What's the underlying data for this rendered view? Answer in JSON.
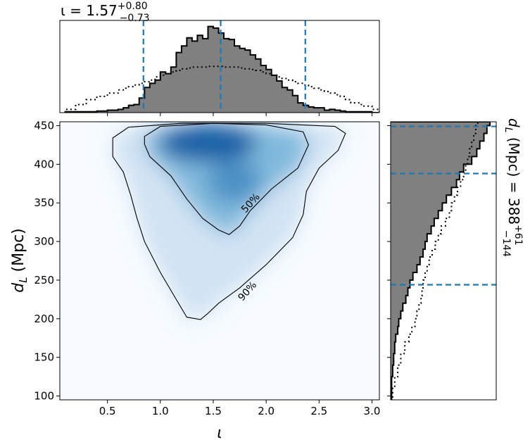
{
  "chart_data": {
    "type": "corner",
    "colors": {
      "density": "#08519c",
      "hist_fill": "#808080",
      "quantile_line": "#1f77b4"
    },
    "joint": {
      "type": "heatmap",
      "colormap": "Blues",
      "xlabel": "ι",
      "ylabel": "d_L (Mpc)",
      "xlim": [
        0.05,
        3.07
      ],
      "ylim": [
        95,
        455
      ],
      "x_ticks": [
        "0.5",
        "1.0",
        "1.5",
        "2.0",
        "2.5",
        "3.0"
      ],
      "y_ticks": [
        "100",
        "150",
        "200",
        "250",
        "300",
        "350",
        "400",
        "450"
      ],
      "density_peak": {
        "x": 1.45,
        "y": 428
      },
      "contours": [
        {
          "level": "50%",
          "points": [
            [
              0.85,
              436
            ],
            [
              1.0,
              449
            ],
            [
              1.5,
              453
            ],
            [
              2.0,
              451
            ],
            [
              2.35,
              442
            ],
            [
              2.4,
              425
            ],
            [
              2.3,
              395
            ],
            [
              2.05,
              368
            ],
            [
              1.85,
              340
            ],
            [
              1.75,
              320
            ],
            [
              1.65,
              309
            ],
            [
              1.55,
              315
            ],
            [
              1.4,
              330
            ],
            [
              1.25,
              355
            ],
            [
              1.1,
              385
            ],
            [
              0.9,
              410
            ],
            [
              0.85,
              426
            ],
            [
              0.85,
              436
            ]
          ]
        },
        {
          "level": "90%",
          "points": [
            [
              0.55,
              434
            ],
            [
              0.7,
              448
            ],
            [
              1.2,
              453
            ],
            [
              2.0,
              453
            ],
            [
              2.65,
              449
            ],
            [
              2.75,
              440
            ],
            [
              2.68,
              418
            ],
            [
              2.5,
              395
            ],
            [
              2.38,
              365
            ],
            [
              2.35,
              335
            ],
            [
              2.25,
              305
            ],
            [
              2.0,
              270
            ],
            [
              1.75,
              240
            ],
            [
              1.55,
              220
            ],
            [
              1.45,
              207
            ],
            [
              1.38,
              199
            ],
            [
              1.25,
              202
            ],
            [
              1.15,
              225
            ],
            [
              1.0,
              260
            ],
            [
              0.85,
              300
            ],
            [
              0.78,
              330
            ],
            [
              0.72,
              360
            ],
            [
              0.65,
              390
            ],
            [
              0.55,
              410
            ],
            [
              0.55,
              434
            ]
          ]
        }
      ],
      "contour_labels": [
        {
          "text": "50%",
          "x": 1.85,
          "y": 350
        },
        {
          "text": "90%",
          "x": 1.82,
          "y": 236
        }
      ]
    },
    "x_marginal": {
      "type": "histogram",
      "title": "ι = 1.57^{+0.80}_{-0.73}",
      "title_main": "ι = 1.57",
      "title_sup": "+0.80",
      "title_sub": "−0.73",
      "quantile_lines": [
        0.84,
        1.57,
        2.37
      ],
      "bins": [
        0.1,
        0.2,
        0.3,
        0.4,
        0.5,
        0.6,
        0.65,
        0.7,
        0.75,
        0.8,
        0.85,
        0.9,
        0.95,
        1.0,
        1.05,
        1.1,
        1.15,
        1.2,
        1.25,
        1.3,
        1.35,
        1.4,
        1.45,
        1.5,
        1.55,
        1.6,
        1.65,
        1.7,
        1.75,
        1.8,
        1.85,
        1.9,
        1.95,
        2.0,
        2.05,
        2.1,
        2.15,
        2.2,
        2.25,
        2.3,
        2.35,
        2.4,
        2.45,
        2.5,
        2.55,
        2.6,
        2.65,
        2.7,
        2.75,
        2.8,
        2.9,
        3.0,
        3.07
      ],
      "posterior_counts": [
        1,
        1,
        1,
        2,
        3,
        4,
        6,
        9,
        10,
        18,
        31,
        36,
        40,
        50,
        48,
        56,
        74,
        82,
        92,
        88,
        95,
        91,
        106,
        104,
        98,
        91,
        90,
        82,
        79,
        77,
        71,
        66,
        58,
        53,
        46,
        39,
        31,
        28,
        21,
        12,
        9,
        7,
        6,
        6,
        3,
        4,
        3,
        2,
        1,
        1,
        1,
        0
      ],
      "prior_counts": [
        4,
        10,
        16,
        20,
        24,
        28,
        30,
        32,
        34,
        36,
        38,
        40,
        44,
        46,
        48,
        50,
        52,
        54,
        55,
        56,
        56,
        56,
        57,
        57,
        57,
        56,
        56,
        56,
        55,
        54,
        53,
        52,
        50,
        48,
        46,
        44,
        42,
        40,
        38,
        36,
        34,
        32,
        30,
        28,
        26,
        24,
        22,
        20,
        16,
        12,
        8,
        4
      ],
      "ymax": 110
    },
    "y_marginal": {
      "type": "histogram",
      "orientation": "horizontal",
      "ylabel": "d_L (Mpc) = 388^{+61}_{-144}",
      "label_main": "d_L (Mpc) = 388",
      "label_sup": "+61",
      "label_sub": "−144",
      "quantile_lines": [
        244,
        388,
        449
      ],
      "bins": [
        95,
        110,
        125,
        140,
        155,
        170,
        180,
        190,
        200,
        210,
        220,
        230,
        240,
        250,
        260,
        270,
        280,
        290,
        300,
        310,
        320,
        330,
        340,
        350,
        360,
        370,
        380,
        390,
        400,
        410,
        420,
        430,
        440,
        450,
        455
      ],
      "posterior_counts": [
        1,
        1,
        2,
        3,
        4,
        5,
        7,
        8,
        10,
        12,
        15,
        17,
        19,
        22,
        26,
        29,
        32,
        34,
        36,
        40,
        43,
        47,
        51,
        55,
        60,
        65,
        68,
        72,
        80,
        85,
        88,
        92,
        95,
        98
      ],
      "prior_counts": [
        2,
        4,
        7,
        10,
        14,
        18,
        21,
        24,
        26,
        28,
        30,
        31,
        32,
        34,
        36,
        38,
        41,
        44,
        47,
        50,
        54,
        58,
        60,
        63,
        66,
        69,
        72,
        74,
        76,
        78,
        80,
        82,
        84,
        86
      ],
      "xmax": 100
    }
  }
}
